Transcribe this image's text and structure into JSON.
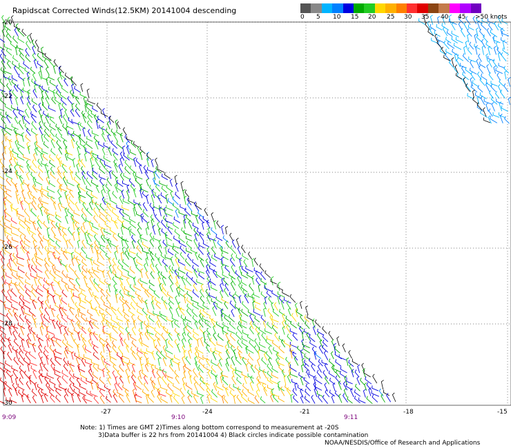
{
  "title": "Rapidscat Corrected Winds(12.5KM) 20141004 descending",
  "colors": {
    "scale": [
      "#555555",
      "#888888",
      "#00b4ff",
      "#0080ff",
      "#0000e0",
      "#00aa00",
      "#22cc22",
      "#ffd700",
      "#ffb000",
      "#ff7f00",
      "#ff3030",
      "#e00000",
      "#8b4513",
      "#c47a4a",
      "#ff00ff",
      "#b000ff",
      "#7000c0"
    ],
    "land": "#ffffff",
    "grid": "#555555",
    "barb_outline": "#000000"
  },
  "scale": {
    "labels": [
      "0",
      "5",
      "10",
      "15",
      "20",
      "25",
      "30",
      "35",
      "40",
      "45",
      ">50 knots"
    ]
  },
  "map": {
    "lat_labels": [
      "-20",
      "-22",
      "-24",
      "-26",
      "-28",
      "-30"
    ],
    "lon_labels": [
      "-27",
      "-24",
      "-21",
      "-18",
      "-15"
    ],
    "time_labels": [
      "9:09",
      "9:10",
      "9:11"
    ]
  },
  "notes": {
    "line1": "Note: 1) Times are GMT 2)Times along bottom correspond to measurement at -20S",
    "line2": "3)Data buffer is 22 hrs from 20141004 4) Black circles indicate possible contamination"
  },
  "credit": "NOAA/NESDIS/Office of Research and Applications"
}
